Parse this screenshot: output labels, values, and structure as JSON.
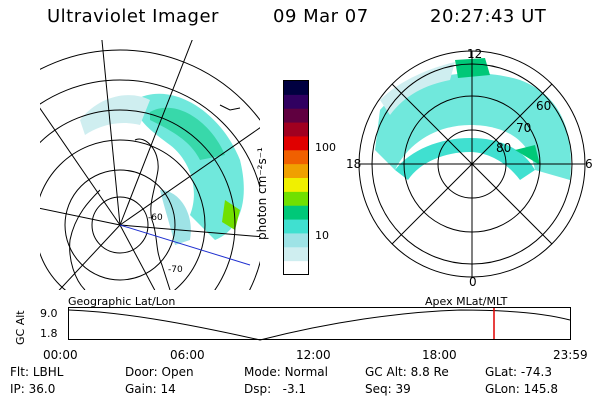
{
  "header": {
    "title": "Ultraviolet Imager",
    "date": "09 Mar 07",
    "time": "20:27:43 UT"
  },
  "panels": {
    "geographic_label": "Geographic Lat/Lon",
    "apex_label": "Apex MLat/MLT",
    "apex_latitude_labels": [
      "60",
      "70",
      "80"
    ],
    "apex_mlt_labels": {
      "top": "12",
      "left": "18",
      "right": "6",
      "bottom": "0"
    },
    "geo_map_labels": [
      "-60",
      "-70"
    ]
  },
  "colorbar": {
    "label": "photon cm⁻²s⁻¹",
    "ticks": [
      "100",
      "10"
    ],
    "colors": [
      "#ffffff",
      "#cfeef0",
      "#9ee3e6",
      "#40e0d0",
      "#00c878",
      "#70e000",
      "#f0f000",
      "#f0a000",
      "#f06000",
      "#e00000",
      "#a00020",
      "#600040",
      "#300060",
      "#000040"
    ]
  },
  "timeline": {
    "y_axis_label": "GC Alt",
    "y_ticks": [
      "9.0",
      "1.8"
    ],
    "x_ticks": [
      "00:00",
      "06:00",
      "12:00",
      "18:00",
      "23:59"
    ],
    "marker_color": "#e00000"
  },
  "info": {
    "flt": {
      "label": "Flt:",
      "value": "LBHL"
    },
    "door": {
      "label": "Door:",
      "value": "Open"
    },
    "mode": {
      "label": "Mode:",
      "value": "Normal"
    },
    "gc_alt": {
      "label": "GC Alt:",
      "value": "8.8 Re"
    },
    "glat": {
      "label": "GLat:",
      "value": "-74.3"
    },
    "ip": {
      "label": "IP:",
      "value": "36.0"
    },
    "gain": {
      "label": "Gain:",
      "value": "14"
    },
    "dsp": {
      "label": "Dsp:",
      "value": "-3.1"
    },
    "seq": {
      "label": "Seq:",
      "value": "39"
    },
    "glon": {
      "label": "GLon:",
      "value": "145.8"
    }
  }
}
